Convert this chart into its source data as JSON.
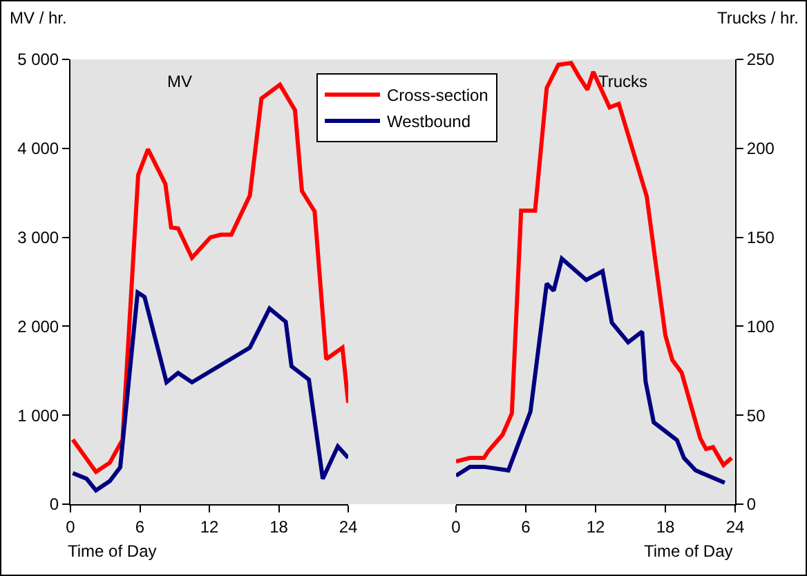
{
  "chart_data": [
    {
      "type": "line",
      "ylabel": "MV / hr.",
      "xlabel": "Time of Day",
      "annotations": [
        "MV"
      ],
      "xlim": [
        0,
        24
      ],
      "xticks": [
        0,
        6,
        12,
        18,
        24
      ],
      "ylim": [
        0,
        5000
      ],
      "yticks": [
        0,
        {
          "value": 1000,
          "label": "1 000"
        },
        {
          "value": 2000,
          "label": "2 000"
        },
        {
          "value": 3000,
          "label": "3 000"
        },
        {
          "value": 4000,
          "label": "4 000"
        },
        {
          "value": 5000,
          "label": "5 000"
        }
      ],
      "legend": "top",
      "series": [
        {
          "name": "Cross-section",
          "color": "#ff0000",
          "x": [
            0.2,
            2.2,
            3.4,
            4.5,
            5.85,
            6.7,
            8.2,
            8.7,
            9.3,
            10.5,
            12.1,
            13,
            13.9,
            15.5,
            16.5,
            18.1,
            19.4,
            20,
            21.1,
            22.1,
            23.5,
            24
          ],
          "values": [
            725,
            363,
            466,
            725,
            3700,
            3990,
            3600,
            3110,
            3100,
            2770,
            3000,
            3030,
            3030,
            3470,
            4560,
            4715,
            4430,
            3520,
            3290,
            1630,
            1760,
            1140
          ]
        },
        {
          "name": "Westbound",
          "color": "#000080",
          "x": [
            0.2,
            1.4,
            2.2,
            3.4,
            4.3,
            5.8,
            6.4,
            8.3,
            9.3,
            10.5,
            15.5,
            17.2,
            18.6,
            19.1,
            20.6,
            21.8,
            23.1,
            24
          ],
          "values": [
            350,
            285,
            155,
            260,
            415,
            2380,
            2330,
            1370,
            1475,
            1370,
            1760,
            2200,
            2050,
            1550,
            1400,
            285,
            650,
            520
          ]
        }
      ]
    },
    {
      "type": "line",
      "ylabel": "Trucks / hr.",
      "xlabel": "Time of Day",
      "annotations": [
        "Trucks"
      ],
      "xlim": [
        0,
        24
      ],
      "xticks": [
        0,
        6,
        12,
        18,
        24
      ],
      "ylim": [
        0,
        250
      ],
      "yticks": [
        0,
        50,
        100,
        150,
        200,
        250
      ],
      "series": [
        {
          "color": "#ff0000",
          "x": [
            0,
            1.2,
            2.4,
            2.8,
            4,
            4.8,
            5.6,
            6.8,
            7.8,
            8.8,
            9.9,
            10.6,
            11.3,
            11.8,
            13.2,
            14,
            16.4,
            18,
            18.6,
            19.4,
            21,
            21.5,
            22.1,
            23,
            23.7
          ],
          "values": [
            24,
            26,
            26,
            30,
            39,
            51,
            165,
            165,
            234,
            247,
            248,
            240,
            233,
            243,
            223,
            225,
            173,
            95,
            81,
            74,
            37,
            31,
            32,
            22,
            26
          ]
        },
        {
          "color": "#000080",
          "x": [
            0,
            1.2,
            2.4,
            4.5,
            6.4,
            7.8,
            8.4,
            9.1,
            11.2,
            12.6,
            13.4,
            14.8,
            16,
            16.3,
            17,
            19,
            19.6,
            20.6,
            23.1
          ],
          "values": [
            16,
            21,
            21,
            19,
            52,
            124,
            120,
            138,
            126,
            131,
            102,
            91,
            97,
            69,
            46,
            36,
            26,
            19,
            12
          ]
        }
      ]
    }
  ]
}
